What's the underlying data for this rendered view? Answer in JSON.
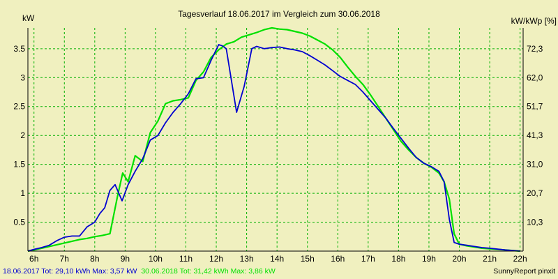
{
  "chart_data": {
    "type": "line",
    "title": "Tagesverlauf 18.06.2017 im Vergleich zum 30.06.2018",
    "ylabel": "kW",
    "ylabel_right": "kW/kWp [%]",
    "xlim": [
      5.8,
      22.1
    ],
    "ylim": [
      0,
      3.86
    ],
    "x_ticks": [
      {
        "value": 6,
        "label": "6h"
      },
      {
        "value": 7,
        "label": "7h"
      },
      {
        "value": 8,
        "label": "8h"
      },
      {
        "value": 9,
        "label": "9h"
      },
      {
        "value": 10,
        "label": "10h"
      },
      {
        "value": 11,
        "label": "11h"
      },
      {
        "value": 12,
        "label": "12h"
      },
      {
        "value": 13,
        "label": "13h"
      },
      {
        "value": 14,
        "label": "14h"
      },
      {
        "value": 15,
        "label": "15h"
      },
      {
        "value": 16,
        "label": "16h"
      },
      {
        "value": 17,
        "label": "17h"
      },
      {
        "value": 18,
        "label": "18h"
      },
      {
        "value": 19,
        "label": "19h"
      },
      {
        "value": 20,
        "label": "20h"
      },
      {
        "value": 21,
        "label": "21h"
      },
      {
        "value": 22,
        "label": "22h"
      }
    ],
    "y_ticks": [
      {
        "value": 0.5,
        "label": "0.5"
      },
      {
        "value": 1,
        "label": "1"
      },
      {
        "value": 1.5,
        "label": "1.5"
      },
      {
        "value": 2,
        "label": "2"
      },
      {
        "value": 2.5,
        "label": "2.5"
      },
      {
        "value": 3,
        "label": "3"
      },
      {
        "value": 3.5,
        "label": "3.5"
      }
    ],
    "y_ticks_right": [
      {
        "value": 0.5,
        "label": "10,3"
      },
      {
        "value": 1.0,
        "label": "20,7"
      },
      {
        "value": 1.5,
        "label": "31,0"
      },
      {
        "value": 2.0,
        "label": "41,3"
      },
      {
        "value": 2.5,
        "label": "51,7"
      },
      {
        "value": 3.0,
        "label": "62,0"
      },
      {
        "value": 3.5,
        "label": "72,3"
      }
    ],
    "grid": true,
    "series": [
      {
        "color": "#00e000",
        "x": [
          5.8,
          6.0,
          6.25,
          6.5,
          6.75,
          7.0,
          7.25,
          7.5,
          7.75,
          8.0,
          8.25,
          8.5,
          8.75,
          8.92,
          9.1,
          9.33,
          9.58,
          9.83,
          10.08,
          10.33,
          10.58,
          10.83,
          11.08,
          11.33,
          11.58,
          11.83,
          12.08,
          12.33,
          12.58,
          12.83,
          13.08,
          13.33,
          13.58,
          13.83,
          14.08,
          14.33,
          14.58,
          14.83,
          15.08,
          15.33,
          15.58,
          15.83,
          16.08,
          16.33,
          16.58,
          16.83,
          17.08,
          17.33,
          17.58,
          17.83,
          18.08,
          18.33,
          18.58,
          18.83,
          19.08,
          19.33,
          19.5,
          19.67,
          19.83,
          20.0,
          20.25,
          20.5,
          20.75,
          21.0,
          21.5,
          22.0
        ],
        "y": [
          0.0,
          0.02,
          0.05,
          0.08,
          0.11,
          0.14,
          0.17,
          0.2,
          0.22,
          0.25,
          0.27,
          0.3,
          0.95,
          1.35,
          1.2,
          1.65,
          1.55,
          2.05,
          2.25,
          2.55,
          2.6,
          2.62,
          2.65,
          2.95,
          3.1,
          3.35,
          3.48,
          3.58,
          3.62,
          3.7,
          3.74,
          3.78,
          3.83,
          3.86,
          3.84,
          3.83,
          3.8,
          3.77,
          3.72,
          3.65,
          3.58,
          3.48,
          3.35,
          3.18,
          3.02,
          2.88,
          2.7,
          2.5,
          2.3,
          2.1,
          1.9,
          1.75,
          1.62,
          1.52,
          1.45,
          1.35,
          1.2,
          0.9,
          0.3,
          0.12,
          0.09,
          0.07,
          0.05,
          0.04,
          0.02,
          0.0
        ]
      },
      {
        "color": "#0000d0",
        "x": [
          5.8,
          6.0,
          6.25,
          6.5,
          6.75,
          7.0,
          7.25,
          7.5,
          7.75,
          8.0,
          8.17,
          8.33,
          8.5,
          8.67,
          8.9,
          9.1,
          9.33,
          9.58,
          9.83,
          10.08,
          10.33,
          10.58,
          10.83,
          11.08,
          11.33,
          11.58,
          11.83,
          12.08,
          12.2,
          12.33,
          12.67,
          12.92,
          13.17,
          13.33,
          13.58,
          13.83,
          14.08,
          14.33,
          14.58,
          14.83,
          15.08,
          15.33,
          15.58,
          15.83,
          16.08,
          16.33,
          16.58,
          16.83,
          17.08,
          17.33,
          17.58,
          17.83,
          18.08,
          18.33,
          18.58,
          18.83,
          19.08,
          19.33,
          19.5,
          19.67,
          19.83,
          20.0,
          20.25,
          20.5,
          20.75,
          21.0,
          21.5,
          22.0
        ],
        "y": [
          0.0,
          0.03,
          0.06,
          0.1,
          0.18,
          0.24,
          0.26,
          0.26,
          0.42,
          0.5,
          0.65,
          0.75,
          1.05,
          1.15,
          0.87,
          1.15,
          1.38,
          1.6,
          1.92,
          2.0,
          2.22,
          2.4,
          2.55,
          2.72,
          2.98,
          3.0,
          3.3,
          3.57,
          3.55,
          3.5,
          2.4,
          2.85,
          3.5,
          3.54,
          3.5,
          3.52,
          3.53,
          3.5,
          3.48,
          3.45,
          3.38,
          3.3,
          3.22,
          3.12,
          3.02,
          2.95,
          2.88,
          2.75,
          2.6,
          2.45,
          2.3,
          2.12,
          1.95,
          1.78,
          1.62,
          1.52,
          1.46,
          1.38,
          1.2,
          0.55,
          0.15,
          0.12,
          0.1,
          0.08,
          0.06,
          0.05,
          0.02,
          0.0
        ]
      }
    ]
  },
  "footer": {
    "series1_label": "18.06.2017 Tot: 29,10 kWh Max: 3,57 kW",
    "series2_label": "30.06.2018 Tot: 31,42 kWh Max: 3,86 kW",
    "series1_color": "#0000d0",
    "series2_color": "#00e000",
    "brand": "SunnyReport pinxit"
  }
}
